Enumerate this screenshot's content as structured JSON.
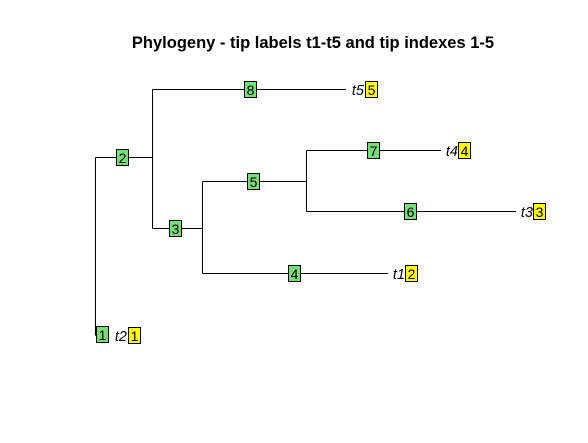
{
  "title": "Phylogeny - tip labels t1-t5 and tip indexes 1-5",
  "colors": {
    "node_box": "#77dd77",
    "tip_box": "#ffff00",
    "line": "#000000"
  },
  "nodes": [
    {
      "id": "1",
      "label": "1"
    },
    {
      "id": "2",
      "label": "2"
    },
    {
      "id": "3",
      "label": "3"
    },
    {
      "id": "4",
      "label": "4"
    },
    {
      "id": "5",
      "label": "5"
    },
    {
      "id": "6",
      "label": "6"
    },
    {
      "id": "7",
      "label": "7"
    },
    {
      "id": "8",
      "label": "8"
    }
  ],
  "tips": [
    {
      "name": "t5",
      "index": "5"
    },
    {
      "name": "t4",
      "index": "4"
    },
    {
      "name": "t3",
      "index": "3"
    },
    {
      "name": "t1",
      "index": "2"
    },
    {
      "name": "t2",
      "index": "1"
    }
  ]
}
